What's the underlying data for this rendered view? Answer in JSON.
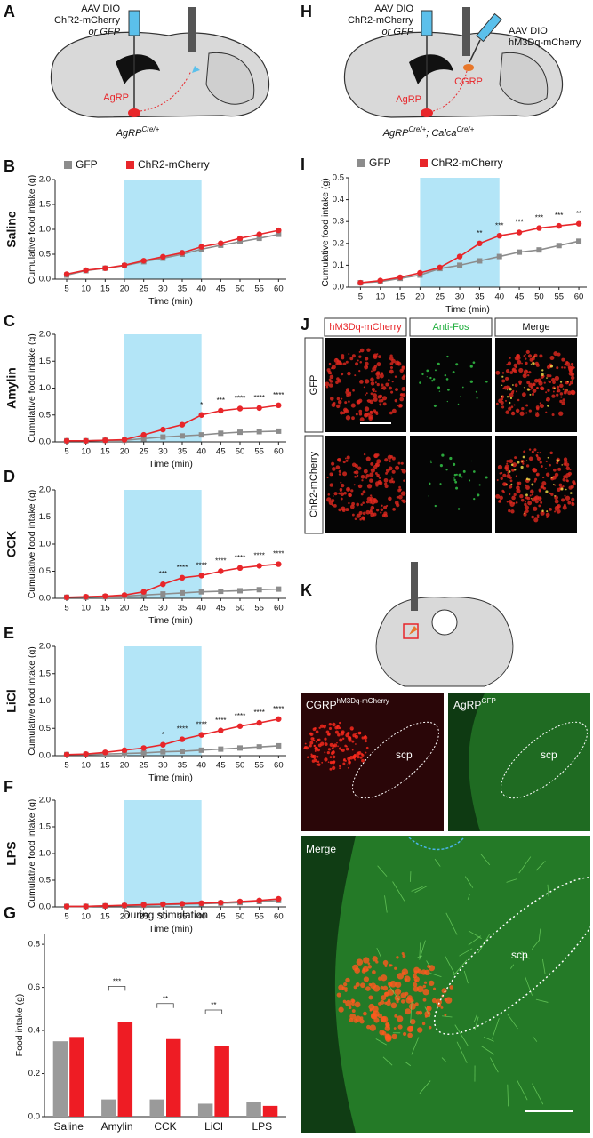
{
  "panels": {
    "A": {
      "letter": "A",
      "injection": [
        "AAV DIO",
        "ChR2-mCherry",
        "or GFP"
      ],
      "neuron": "AgRP",
      "genotype": [
        {
          "text": "AgRP",
          "sup": "Cre/+"
        }
      ]
    },
    "H": {
      "letter": "H",
      "injection": [
        "AAV DIO",
        "ChR2-mCherry",
        "or GFP"
      ],
      "injection2": [
        "AAV DIO",
        "hM3Dq-mCherry"
      ],
      "neuron": "AgRP",
      "target": "CGRP",
      "genotype": [
        {
          "text": "AgRP",
          "sup": "Cre/+"
        },
        {
          "text": "; Calca",
          "sup": "Cre/+"
        }
      ]
    },
    "J": {
      "letter": "J",
      "columns": [
        "hM3Dq-mCherry",
        "Anti-Fos",
        "Merge"
      ],
      "rows": [
        "GFP",
        "ChR2-mCherry"
      ]
    },
    "K": {
      "letter": "K",
      "left": {
        "text": "CGRP",
        "sup": "hM3Dq-mCherry"
      },
      "right": {
        "text": "AgRP",
        "sup": "GFP"
      },
      "merge": "Merge",
      "region": "scp"
    }
  },
  "chart_data": [
    {
      "type": "line",
      "label": "B",
      "row_label": "Saline",
      "ylabel": "Cumulative food intake (g)",
      "xlabel": "Time (min)",
      "x": [
        5,
        10,
        15,
        20,
        25,
        30,
        35,
        40,
        45,
        50,
        55,
        60
      ],
      "xlim": [
        2,
        62
      ],
      "xticks": [
        5,
        10,
        15,
        20,
        25,
        30,
        35,
        40,
        45,
        50,
        55,
        60
      ],
      "ylim": [
        0,
        2
      ],
      "yticks": [
        {
          "value": 0,
          "label": "0.0"
        },
        {
          "value": 0.5,
          "label": "0.5"
        },
        {
          "value": 1,
          "label": "1.0"
        },
        {
          "value": 1.5,
          "label": "1.5"
        },
        {
          "value": 2,
          "label": "2.0"
        }
      ],
      "highlight": [
        20,
        40
      ],
      "series": [
        {
          "name": "GFP",
          "color": "#8c8c8c",
          "values": [
            0.08,
            0.17,
            0.22,
            0.27,
            0.35,
            0.42,
            0.5,
            0.6,
            0.68,
            0.75,
            0.82,
            0.9
          ]
        },
        {
          "name": "ChR2-mCherry",
          "color": "#e8262a",
          "values": [
            0.1,
            0.18,
            0.22,
            0.28,
            0.37,
            0.45,
            0.53,
            0.65,
            0.72,
            0.82,
            0.9,
            0.98
          ]
        }
      ]
    },
    {
      "type": "line",
      "label": "C",
      "row_label": "Amylin",
      "ylabel": "Cumulative food intake (g)",
      "xlabel": "Time (min)",
      "x": [
        5,
        10,
        15,
        20,
        25,
        30,
        35,
        40,
        45,
        50,
        55,
        60
      ],
      "xlim": [
        2,
        62
      ],
      "xticks": [
        5,
        10,
        15,
        20,
        25,
        30,
        35,
        40,
        45,
        50,
        55,
        60
      ],
      "ylim": [
        0,
        2
      ],
      "yticks": [
        {
          "value": 0,
          "label": "0.0"
        },
        {
          "value": 0.5,
          "label": "0.5"
        },
        {
          "value": 1,
          "label": "1.0"
        },
        {
          "value": 1.5,
          "label": "1.5"
        },
        {
          "value": 2,
          "label": "2.0"
        }
      ],
      "highlight": [
        20,
        40
      ],
      "series": [
        {
          "color": "#8c8c8c",
          "values": [
            0.02,
            0.02,
            0.03,
            0.03,
            0.06,
            0.09,
            0.11,
            0.13,
            0.16,
            0.18,
            0.19,
            0.2
          ]
        },
        {
          "color": "#e8262a",
          "values": [
            0.02,
            0.02,
            0.03,
            0.04,
            0.13,
            0.23,
            0.32,
            0.5,
            0.58,
            0.62,
            0.63,
            0.68
          ]
        }
      ],
      "significance": [
        null,
        null,
        null,
        null,
        null,
        null,
        null,
        "*",
        "***",
        "****",
        "****",
        "****"
      ]
    },
    {
      "type": "line",
      "label": "D",
      "row_label": "CCK",
      "ylabel": "Cumulative food intake (g)",
      "xlabel": "Time (min)",
      "x": [
        5,
        10,
        15,
        20,
        25,
        30,
        35,
        40,
        45,
        50,
        55,
        60
      ],
      "xlim": [
        2,
        62
      ],
      "xticks": [
        5,
        10,
        15,
        20,
        25,
        30,
        35,
        40,
        45,
        50,
        55,
        60
      ],
      "ylim": [
        0,
        2
      ],
      "yticks": [
        {
          "value": 0,
          "label": "0.0"
        },
        {
          "value": 0.5,
          "label": "0.5"
        },
        {
          "value": 1,
          "label": "1.0"
        },
        {
          "value": 1.5,
          "label": "1.5"
        },
        {
          "value": 2,
          "label": "2.0"
        }
      ],
      "highlight": [
        20,
        40
      ],
      "series": [
        {
          "color": "#8c8c8c",
          "values": [
            0.02,
            0.02,
            0.03,
            0.04,
            0.06,
            0.08,
            0.1,
            0.12,
            0.13,
            0.14,
            0.16,
            0.17
          ]
        },
        {
          "color": "#e8262a",
          "values": [
            0.02,
            0.03,
            0.04,
            0.06,
            0.12,
            0.26,
            0.38,
            0.42,
            0.5,
            0.56,
            0.6,
            0.63
          ]
        }
      ],
      "significance": [
        null,
        null,
        null,
        null,
        null,
        "***",
        "****",
        "****",
        "****",
        "****",
        "****",
        "****"
      ]
    },
    {
      "type": "line",
      "label": "E",
      "row_label": "LiCl",
      "ylabel": "Cumulative food intake (g)",
      "xlabel": "Time (min)",
      "x": [
        5,
        10,
        15,
        20,
        25,
        30,
        35,
        40,
        45,
        50,
        55,
        60
      ],
      "xlim": [
        2,
        62
      ],
      "xticks": [
        5,
        10,
        15,
        20,
        25,
        30,
        35,
        40,
        45,
        50,
        55,
        60
      ],
      "ylim": [
        0,
        2
      ],
      "yticks": [
        {
          "value": 0,
          "label": "0.0"
        },
        {
          "value": 0.5,
          "label": "0.5"
        },
        {
          "value": 1,
          "label": "1.0"
        },
        {
          "value": 1.5,
          "label": "1.5"
        },
        {
          "value": 2,
          "label": "2.0"
        }
      ],
      "highlight": [
        20,
        40
      ],
      "series": [
        {
          "color": "#8c8c8c",
          "values": [
            0.02,
            0.02,
            0.03,
            0.04,
            0.05,
            0.07,
            0.08,
            0.1,
            0.12,
            0.14,
            0.16,
            0.18
          ]
        },
        {
          "color": "#e8262a",
          "values": [
            0.02,
            0.03,
            0.06,
            0.1,
            0.14,
            0.2,
            0.3,
            0.38,
            0.46,
            0.54,
            0.6,
            0.67
          ]
        }
      ],
      "significance": [
        null,
        null,
        null,
        null,
        null,
        "*",
        "****",
        "****",
        "****",
        "****",
        "****",
        "****"
      ]
    },
    {
      "type": "line",
      "label": "F",
      "row_label": "LPS",
      "ylabel": "Cumulative food intake (g)",
      "xlabel": "Time (min)",
      "x": [
        5,
        10,
        15,
        20,
        25,
        30,
        35,
        40,
        45,
        50,
        55,
        60
      ],
      "xlim": [
        2,
        62
      ],
      "xticks": [
        5,
        10,
        15,
        20,
        25,
        30,
        35,
        40,
        45,
        50,
        55,
        60
      ],
      "ylim": [
        0,
        2
      ],
      "yticks": [
        {
          "value": 0,
          "label": "0.0"
        },
        {
          "value": 0.5,
          "label": "0.5"
        },
        {
          "value": 1,
          "label": "1.0"
        },
        {
          "value": 1.5,
          "label": "1.5"
        },
        {
          "value": 2,
          "label": "2.0"
        }
      ],
      "highlight": [
        20,
        40
      ],
      "series": [
        {
          "color": "#8c8c8c",
          "values": [
            0.01,
            0.01,
            0.02,
            0.02,
            0.03,
            0.04,
            0.05,
            0.06,
            0.07,
            0.08,
            0.1,
            0.12
          ]
        },
        {
          "color": "#e8262a",
          "values": [
            0.01,
            0.01,
            0.02,
            0.03,
            0.04,
            0.05,
            0.06,
            0.07,
            0.08,
            0.1,
            0.12,
            0.15
          ]
        }
      ]
    },
    {
      "type": "line",
      "label": "I",
      "ylabel": "Cumulative food intake (g)",
      "xlabel": "Time (min)",
      "x": [
        5,
        10,
        15,
        20,
        25,
        30,
        35,
        40,
        45,
        50,
        55,
        60
      ],
      "xlim": [
        2,
        62
      ],
      "xticks": [
        5,
        10,
        15,
        20,
        25,
        30,
        35,
        40,
        45,
        50,
        55,
        60
      ],
      "ylim": [
        0,
        0.5
      ],
      "yticks": [
        {
          "value": 0,
          "label": "0.0"
        },
        0.1,
        0.2,
        0.3,
        0.4,
        0.5
      ],
      "highlight": [
        20,
        40
      ],
      "series": [
        {
          "name": "GFP",
          "color": "#8c8c8c",
          "values": [
            0.02,
            0.025,
            0.04,
            0.055,
            0.085,
            0.1,
            0.12,
            0.14,
            0.16,
            0.17,
            0.19,
            0.21
          ]
        },
        {
          "name": "ChR2-mCherry",
          "color": "#e8262a",
          "values": [
            0.02,
            0.03,
            0.045,
            0.065,
            0.09,
            0.14,
            0.2,
            0.235,
            0.25,
            0.27,
            0.28,
            0.29
          ]
        }
      ],
      "significance": [
        null,
        null,
        null,
        null,
        null,
        null,
        "**",
        "***",
        "***",
        "***",
        "***",
        "**"
      ]
    },
    {
      "type": "bar",
      "label": "G",
      "title": "During stimulation",
      "ylabel": "Food intake (g)",
      "categories": [
        "Saline",
        "Amylin",
        "CCK",
        "LiCl",
        "LPS"
      ],
      "ylim": [
        0,
        0.85
      ],
      "yticks": [
        {
          "value": 0,
          "label": "0.0"
        },
        0.2,
        0.4,
        0.6,
        0.8
      ],
      "series": [
        {
          "color": "#9a9a9a",
          "values": [
            0.35,
            0.08,
            0.08,
            0.06,
            0.07
          ]
        },
        {
          "color": "#ee1c24",
          "values": [
            0.37,
            0.44,
            0.36,
            0.33,
            0.05
          ]
        }
      ],
      "significance": [
        null,
        "***",
        "**",
        "**",
        null
      ]
    }
  ]
}
